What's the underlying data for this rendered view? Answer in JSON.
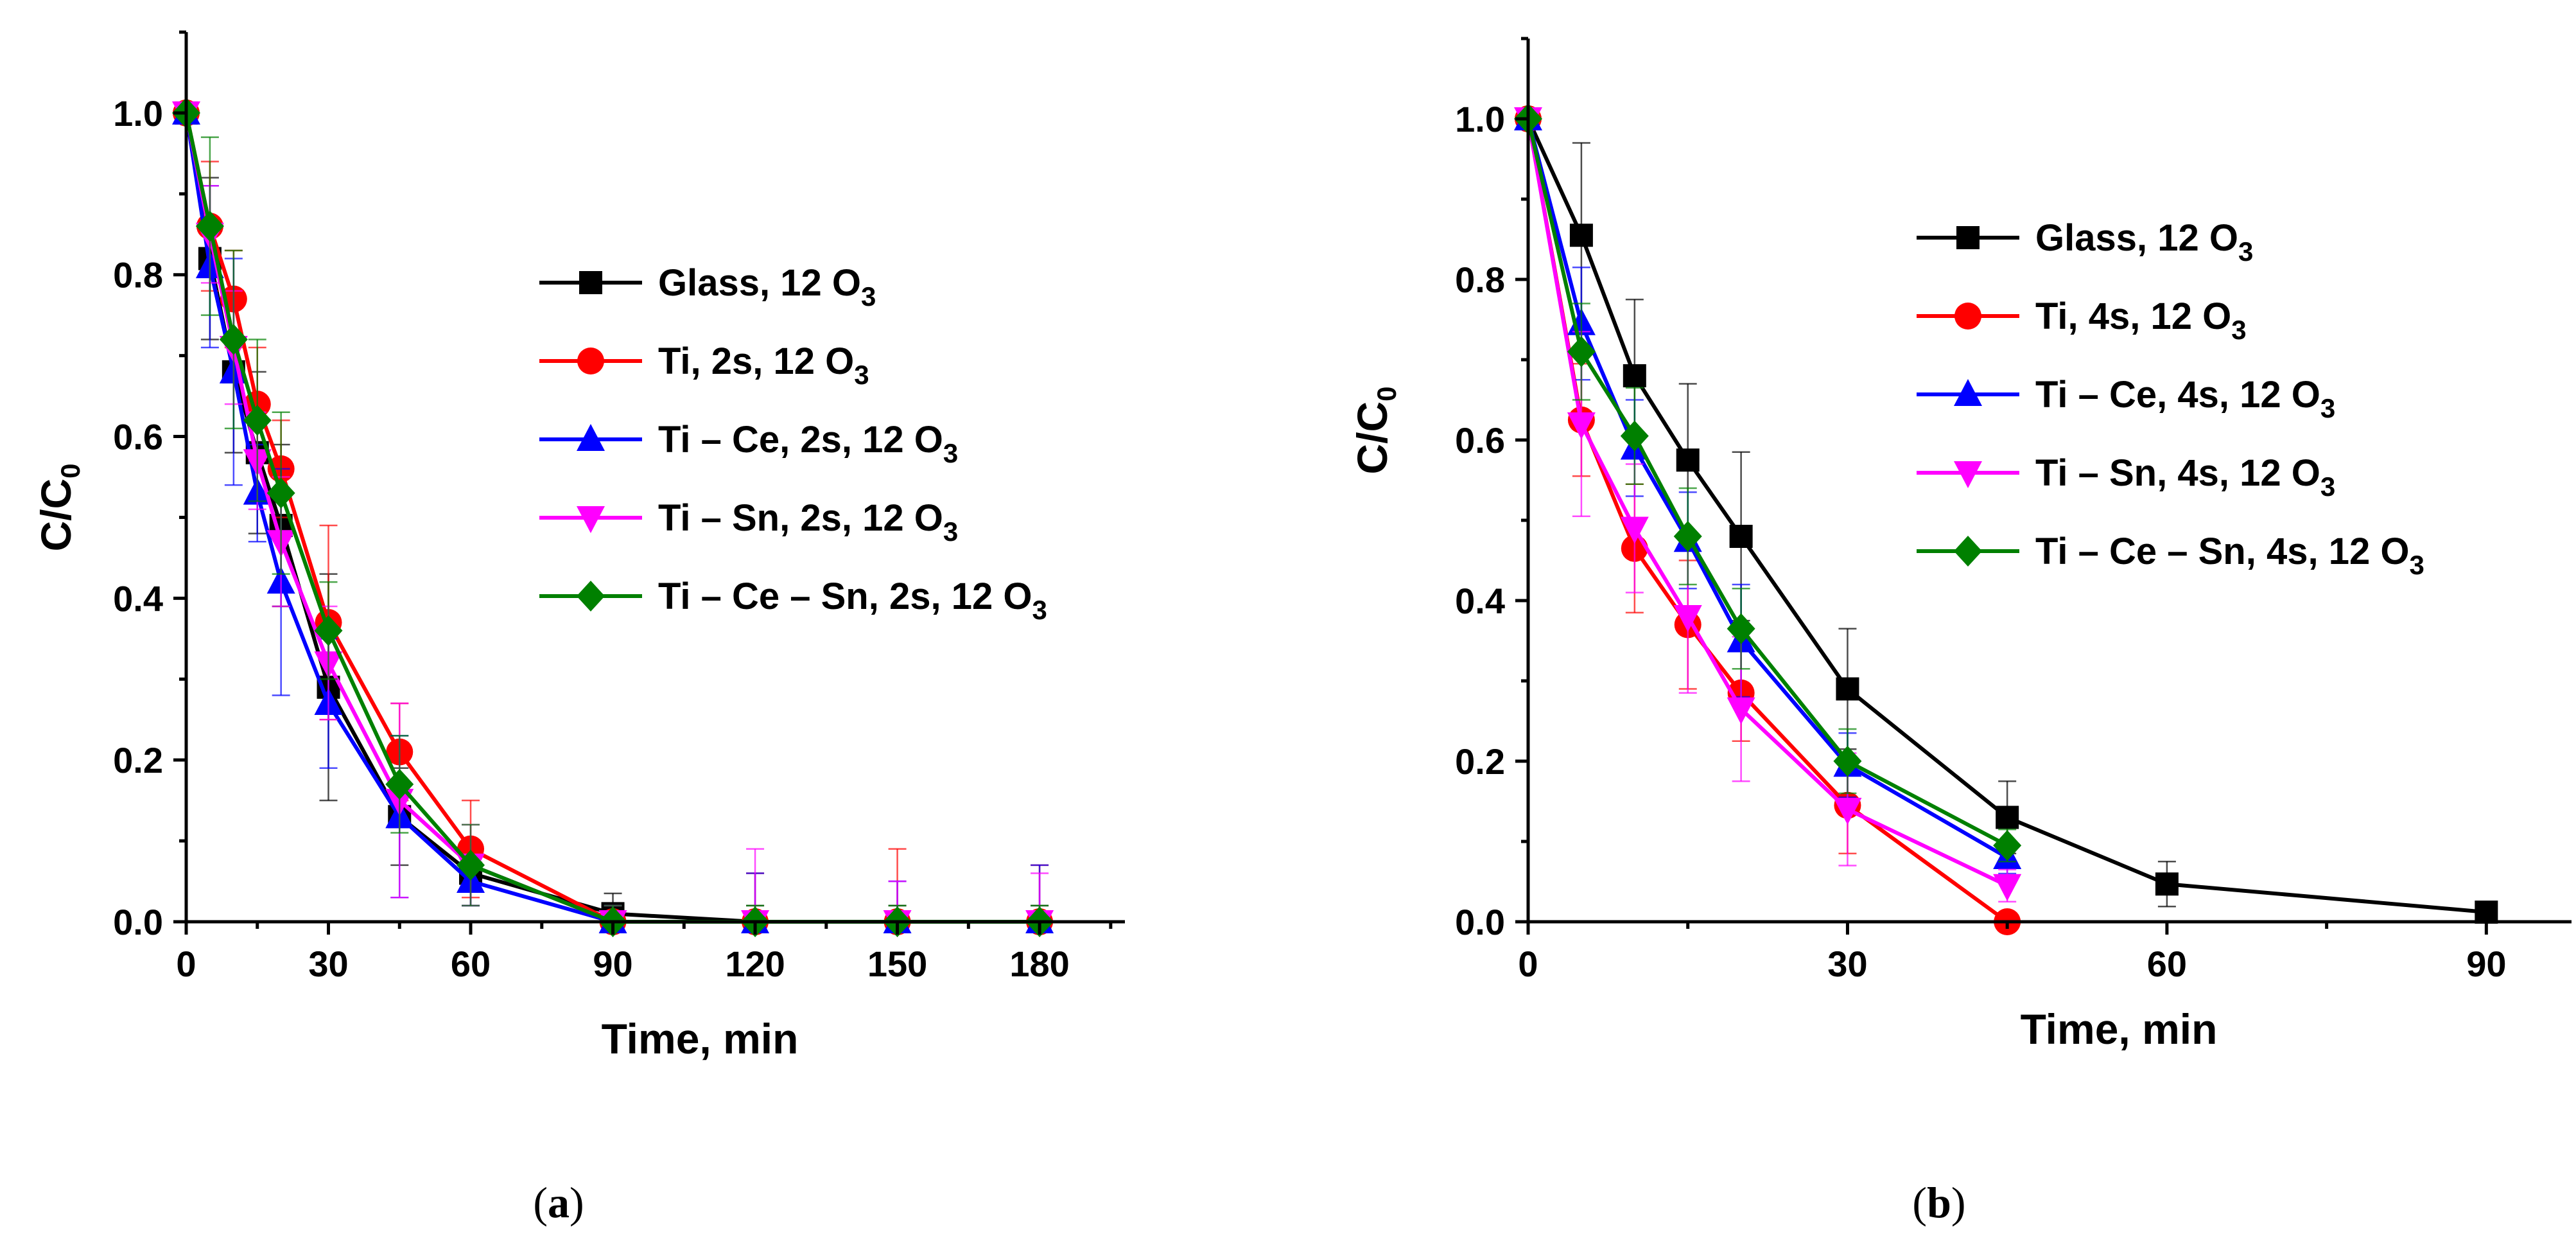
{
  "chart_data": [
    {
      "type": "line",
      "panel": "a",
      "panel_label": "a",
      "xlabel": "Time, min",
      "ylabel": "C/C",
      "ylabel_sub": "0",
      "xlim": [
        0,
        198
      ],
      "ylim": [
        0,
        1.1
      ],
      "xticks": [
        0,
        30,
        60,
        90,
        120,
        150,
        180
      ],
      "xtick_labels": [
        "0",
        "30",
        "60",
        "90",
        "120",
        "150",
        "180"
      ],
      "yticks": [
        0,
        0.2,
        0.4,
        0.6,
        0.8,
        1.0
      ],
      "ytick_labels": [
        "0.0",
        "0.2",
        "0.4",
        "0.6",
        "0.8",
        "1.0"
      ],
      "grid": false,
      "legend_position": "center-right",
      "series": [
        {
          "name": "Glass, 12 O",
          "sub": "3",
          "color": "#000000",
          "marker": "square",
          "x": [
            0,
            5,
            10,
            15,
            20,
            30,
            45,
            60,
            90,
            120,
            150,
            180
          ],
          "y": [
            1.0,
            0.82,
            0.68,
            0.58,
            0.49,
            0.29,
            0.13,
            0.06,
            0.01,
            0.0,
            0.0,
            0.0
          ],
          "err": [
            0.0,
            0.1,
            0.1,
            0.1,
            0.1,
            0.14,
            0.06,
            0.04,
            0.025,
            0.02,
            0.02,
            0.02
          ]
        },
        {
          "name": "Ti, 2s, 12 O",
          "sub": "3",
          "color": "#ff0000",
          "marker": "circle",
          "x": [
            0,
            5,
            10,
            15,
            20,
            30,
            45,
            60,
            90,
            120,
            150,
            180
          ],
          "y": [
            1.0,
            0.86,
            0.77,
            0.64,
            0.56,
            0.37,
            0.21,
            0.09,
            0.0,
            0.0,
            0.0,
            0.0
          ],
          "err": [
            0.0,
            0.08,
            0.06,
            0.07,
            0.06,
            0.12,
            0.06,
            0.06,
            0.02,
            0.06,
            0.09,
            0.07
          ]
        },
        {
          "name": "Ti – Ce, 2s, 12 O",
          "sub": "3",
          "color": "#0000ff",
          "marker": "triangle-up",
          "x": [
            0,
            5,
            10,
            15,
            20,
            30,
            45,
            60,
            90,
            120,
            150,
            180
          ],
          "y": [
            1.0,
            0.81,
            0.68,
            0.53,
            0.42,
            0.27,
            0.13,
            0.05,
            0.0,
            0.0,
            0.0,
            0.0
          ],
          "err": [
            0.0,
            0.1,
            0.14,
            0.06,
            0.14,
            0.08,
            0.1,
            0.03,
            0.02,
            0.06,
            0.05,
            0.07
          ]
        },
        {
          "name": "Ti – Sn, 2s, 12 O",
          "sub": "3",
          "color": "#ff00ff",
          "marker": "triangle-down",
          "x": [
            0,
            5,
            10,
            15,
            20,
            30,
            45,
            60,
            90,
            120,
            150,
            180
          ],
          "y": [
            1.0,
            0.85,
            0.71,
            0.57,
            0.47,
            0.32,
            0.15,
            0.07,
            0.0,
            0.0,
            0.0,
            0.0
          ],
          "err": [
            0.0,
            0.06,
            0.07,
            0.06,
            0.08,
            0.07,
            0.12,
            0.05,
            0.02,
            0.09,
            0.05,
            0.06
          ]
        },
        {
          "name": "Ti – Ce – Sn, 2s, 12 O",
          "sub": "3",
          "color": "#008000",
          "marker": "diamond",
          "x": [
            0,
            5,
            10,
            15,
            20,
            30,
            45,
            60,
            90,
            120,
            150,
            180
          ],
          "y": [
            1.0,
            0.86,
            0.72,
            0.62,
            0.53,
            0.36,
            0.17,
            0.07,
            0.0,
            0.0,
            0.0,
            0.0
          ],
          "err": [
            0.0,
            0.11,
            0.11,
            0.1,
            0.1,
            0.06,
            0.06,
            0.05,
            0.02,
            0.02,
            0.02,
            0.02
          ]
        }
      ]
    },
    {
      "type": "line",
      "panel": "b",
      "panel_label": "b",
      "xlabel": "Time, min",
      "ylabel": "C/C",
      "ylabel_sub": "0",
      "xlim": [
        0,
        98
      ],
      "ylim": [
        0,
        1.1
      ],
      "xticks": [
        0,
        30,
        60,
        90
      ],
      "xtick_labels": [
        "0",
        "30",
        "60",
        "90"
      ],
      "yticks": [
        0,
        0.2,
        0.4,
        0.6,
        0.8,
        1.0
      ],
      "ytick_labels": [
        "0.0",
        "0.2",
        "0.4",
        "0.6",
        "0.8",
        "1.0"
      ],
      "grid": false,
      "legend_position": "top-right",
      "series": [
        {
          "name": "Glass, 12 O",
          "sub": "3",
          "color": "#000000",
          "marker": "square",
          "x": [
            0,
            5,
            10,
            15,
            20,
            30,
            45,
            60,
            90
          ],
          "y": [
            1.0,
            0.855,
            0.68,
            0.575,
            0.48,
            0.29,
            0.13,
            0.047,
            0.012
          ],
          "err": [
            0.0,
            0.115,
            0.095,
            0.095,
            0.105,
            0.075,
            0.045,
            0.028,
            0.0
          ]
        },
        {
          "name": "Ti, 4s, 12 O",
          "sub": "3",
          "color": "#ff0000",
          "marker": "circle",
          "x": [
            0,
            5,
            10,
            15,
            20,
            30,
            45
          ],
          "y": [
            1.0,
            0.625,
            0.465,
            0.37,
            0.285,
            0.145,
            0.0
          ],
          "err": [
            0.0,
            0.07,
            0.08,
            0.08,
            0.06,
            0.06,
            0.0
          ]
        },
        {
          "name": "Ti – Ce, 4s, 12 O",
          "sub": "3",
          "color": "#0000ff",
          "marker": "triangle-up",
          "x": [
            0,
            5,
            10,
            15,
            20,
            30,
            45
          ],
          "y": [
            1.0,
            0.745,
            0.59,
            0.475,
            0.35,
            0.195,
            0.08
          ],
          "err": [
            0.0,
            0.07,
            0.06,
            0.06,
            0.07,
            0.04,
            0.02
          ]
        },
        {
          "name": "Ti – Sn, 4s, 12 O",
          "sub": "3",
          "color": "#ff00ff",
          "marker": "triangle-down",
          "x": [
            0,
            5,
            10,
            15,
            20,
            30,
            45
          ],
          "y": [
            1.0,
            0.62,
            0.49,
            0.38,
            0.265,
            0.14,
            0.045
          ],
          "err": [
            0.0,
            0.115,
            0.08,
            0.095,
            0.09,
            0.07,
            0.02
          ]
        },
        {
          "name": "Ti – Ce – Sn, 4s, 12 O",
          "sub": "3",
          "color": "#008000",
          "marker": "diamond",
          "x": [
            0,
            5,
            10,
            15,
            20,
            30,
            45
          ],
          "y": [
            1.0,
            0.71,
            0.605,
            0.48,
            0.365,
            0.2,
            0.095
          ],
          "err": [
            0.0,
            0.06,
            0.06,
            0.06,
            0.05,
            0.04,
            0.02
          ]
        }
      ]
    }
  ]
}
